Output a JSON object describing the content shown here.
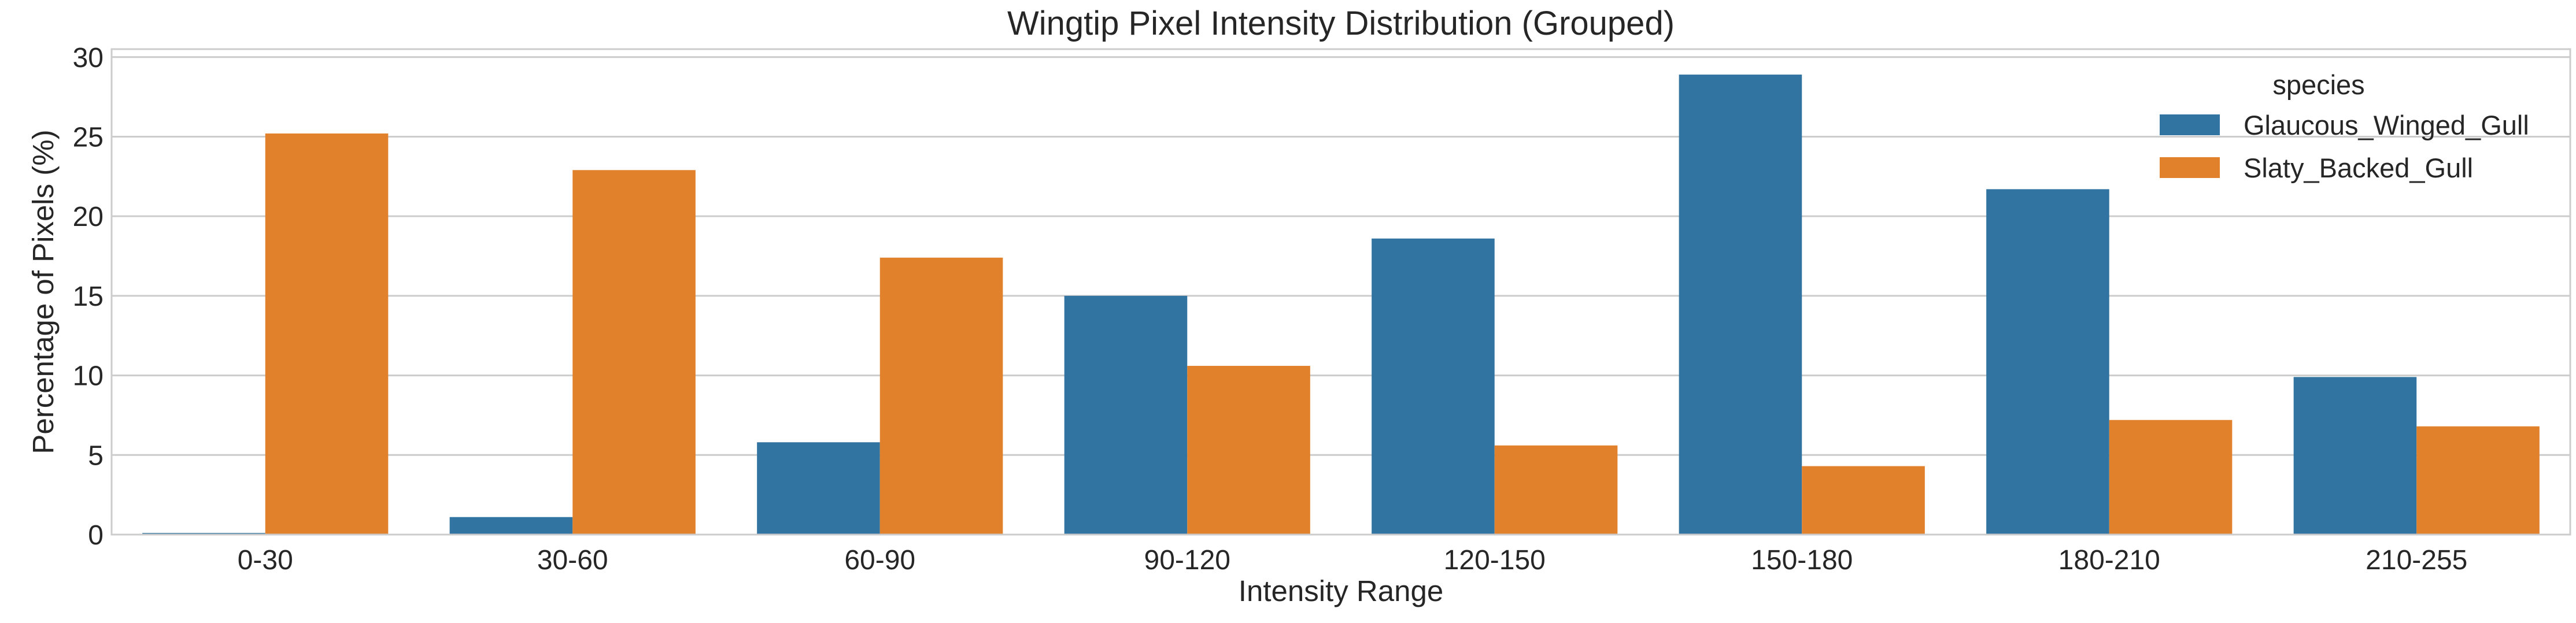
{
  "chart_data": {
    "type": "bar",
    "title": "Wingtip Pixel Intensity Distribution (Grouped)",
    "xlabel": "Intensity Range",
    "ylabel": "Percentage of Pixels (%)",
    "categories": [
      "0-30",
      "30-60",
      "60-90",
      "90-120",
      "120-150",
      "150-180",
      "180-210",
      "210-255"
    ],
    "ylim": [
      0,
      30.5
    ],
    "yticks": [
      0,
      5,
      10,
      15,
      20,
      25,
      30
    ],
    "grid": true,
    "legend": {
      "title": "species",
      "placement": "top-right"
    },
    "series": [
      {
        "name": "Glaucous_Winged_Gull",
        "color": "#3274a1",
        "values": [
          0.1,
          1.1,
          5.8,
          15.0,
          18.6,
          28.9,
          21.7,
          9.9
        ]
      },
      {
        "name": "Slaty_Backed_Gull",
        "color": "#e1812c",
        "values": [
          25.2,
          22.9,
          17.4,
          10.6,
          5.6,
          4.3,
          7.2,
          6.8
        ]
      }
    ]
  }
}
